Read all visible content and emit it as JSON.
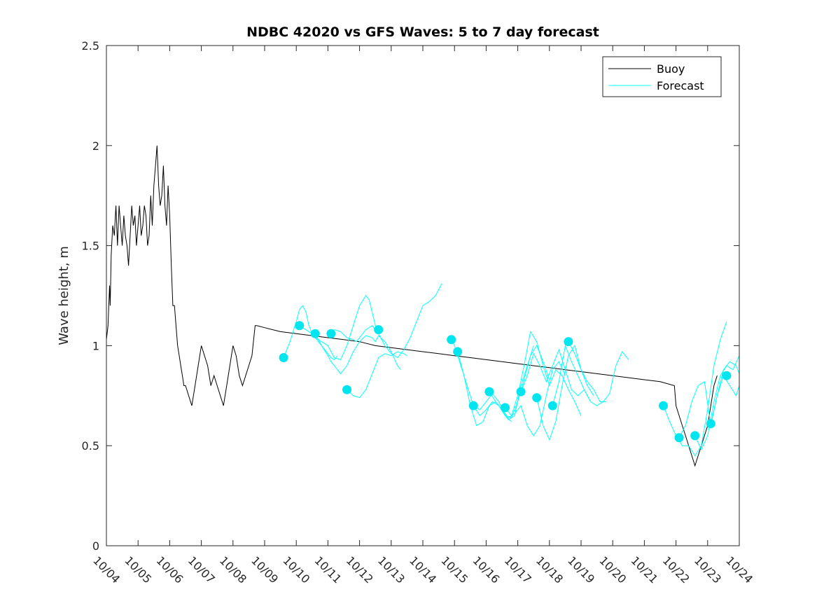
{
  "chart_data": {
    "type": "line",
    "title": "NDBC 42020 vs GFS Waves: 5 to 7 day forecast",
    "xlabel": "",
    "ylabel": "Wave height, m",
    "xlim": [
      0,
      20
    ],
    "ylim": [
      0,
      2.5
    ],
    "x_unit": "days since 10/04",
    "x_tick_values": [
      0,
      1,
      2,
      3,
      4,
      5,
      6,
      7,
      8,
      9,
      10,
      11,
      12,
      13,
      14,
      15,
      16,
      17,
      18,
      19,
      20
    ],
    "x_tick_labels": [
      "10/04",
      "10/05",
      "10/06",
      "10/07",
      "10/08",
      "10/09",
      "10/10",
      "10/11",
      "10/12",
      "10/13",
      "10/14",
      "10/15",
      "10/16",
      "10/17",
      "10/18",
      "10/19",
      "10/20",
      "10/21",
      "10/22",
      "10/23",
      "10/24"
    ],
    "y_tick_values": [
      0,
      0.5,
      1,
      1.5,
      2,
      2.5
    ],
    "y_tick_labels": [
      "0",
      "0.5",
      "1",
      "1.5",
      "2",
      "2.5"
    ],
    "legend": {
      "position": "top-right",
      "entries": [
        {
          "name": "Buoy",
          "color": "#000000"
        },
        {
          "name": "Forecast",
          "color": "#00ffff"
        }
      ]
    },
    "series": [
      {
        "name": "Buoy",
        "color": "#000000",
        "x": [
          0,
          0.05,
          0.1,
          0.12,
          0.15,
          0.2,
          0.25,
          0.3,
          0.35,
          0.4,
          0.45,
          0.5,
          0.55,
          0.6,
          0.65,
          0.7,
          0.75,
          0.8,
          0.85,
          0.9,
          0.95,
          1.0,
          1.05,
          1.1,
          1.15,
          1.2,
          1.25,
          1.3,
          1.35,
          1.4,
          1.45,
          1.5,
          1.55,
          1.6,
          1.65,
          1.7,
          1.75,
          1.8,
          1.85,
          1.9,
          1.95,
          2.0,
          2.05,
          2.1,
          2.15,
          2.2,
          2.25,
          2.3,
          2.35,
          2.4,
          2.45,
          2.5,
          2.6,
          2.7,
          2.75,
          2.8,
          2.9,
          3.0,
          3.1,
          3.2,
          3.3,
          3.4,
          3.5,
          3.6,
          3.7,
          3.8,
          3.9,
          4.0,
          4.1,
          4.2,
          4.3,
          4.4,
          4.5,
          4.6,
          4.7,
          4.75,
          5.0,
          5.5,
          6.0,
          6.5,
          7.0,
          7.5,
          8.0,
          8.5,
          9.0,
          9.5,
          10.0,
          10.5,
          11.0,
          11.5,
          12.0,
          12.5,
          13.0,
          13.5,
          14.0,
          14.5,
          15.0,
          15.5,
          16.0,
          16.5,
          17.0,
          17.5,
          17.95,
          18.0,
          18.1,
          18.2,
          18.3,
          18.4,
          18.5,
          18.6,
          18.7,
          18.8,
          18.9,
          19.0,
          19.1,
          19.2,
          19.3
        ],
        "y": [
          1.03,
          1.1,
          1.3,
          1.2,
          1.45,
          1.6,
          1.55,
          1.7,
          1.5,
          1.7,
          1.6,
          1.5,
          1.65,
          1.55,
          1.5,
          1.4,
          1.55,
          1.7,
          1.6,
          1.65,
          1.5,
          1.6,
          1.7,
          1.55,
          1.6,
          1.7,
          1.65,
          1.5,
          1.55,
          1.75,
          1.6,
          1.8,
          1.9,
          2.0,
          1.8,
          1.7,
          1.75,
          1.9,
          1.7,
          1.6,
          1.8,
          1.65,
          1.4,
          1.2,
          1.2,
          1.1,
          1.0,
          0.95,
          0.9,
          0.85,
          0.8,
          0.8,
          0.75,
          0.7,
          0.75,
          0.8,
          0.9,
          1.0,
          0.95,
          0.9,
          0.8,
          0.85,
          0.8,
          0.75,
          0.7,
          0.8,
          0.9,
          1.0,
          0.95,
          0.85,
          0.8,
          0.85,
          0.9,
          0.95,
          1.1,
          1.1,
          1.09,
          1.07,
          1.06,
          1.05,
          1.04,
          1.03,
          1.02,
          1.0,
          0.99,
          0.98,
          0.97,
          0.96,
          0.95,
          0.94,
          0.93,
          0.92,
          0.91,
          0.9,
          0.89,
          0.88,
          0.87,
          0.86,
          0.85,
          0.84,
          0.83,
          0.82,
          0.8,
          0.7,
          0.65,
          0.6,
          0.55,
          0.5,
          0.45,
          0.4,
          0.45,
          0.5,
          0.55,
          0.6,
          0.7,
          0.8,
          0.85
        ]
      },
      {
        "name": "Forecast",
        "color": "#00ffff",
        "x": [
          5.6,
          5.8,
          6.0,
          6.1,
          6.2,
          6.3,
          6.4,
          6.5,
          6.6,
          6.7,
          6.8,
          6.9,
          7.0,
          7.1,
          7.2,
          7.3
        ],
        "y": [
          0.94,
          1.02,
          1.12,
          1.18,
          1.2,
          1.17,
          1.1,
          1.06,
          1.04,
          1.02,
          1.0,
          0.98,
          0.96,
          0.94,
          0.93,
          0.95
        ]
      },
      {
        "name": "Forecast",
        "color": "#00ffff",
        "x": [
          6.1,
          6.3,
          6.5,
          6.6,
          6.8,
          7.0,
          7.1,
          7.2,
          7.4,
          7.6,
          7.8,
          8.0,
          8.2,
          8.3,
          8.5,
          8.6
        ],
        "y": [
          1.1,
          1.08,
          1.06,
          1.04,
          1.02,
          1.0,
          0.97,
          0.94,
          0.93,
          1.0,
          1.1,
          1.2,
          1.25,
          1.23,
          1.1,
          1.08
        ]
      },
      {
        "name": "Forecast",
        "color": "#00ffff",
        "x": [
          6.6,
          6.8,
          7.0,
          7.1,
          7.3,
          7.4,
          7.6,
          7.8,
          8.0,
          8.2,
          8.4,
          8.5,
          8.6,
          8.8,
          9.0,
          9.2,
          9.3
        ],
        "y": [
          1.06,
          1.0,
          0.95,
          0.92,
          0.88,
          0.86,
          0.9,
          0.97,
          1.02,
          1.05,
          1.04,
          1.02,
          1.05,
          1.02,
          0.97,
          0.9,
          0.88
        ]
      },
      {
        "name": "Forecast",
        "color": "#00ffff",
        "x": [
          7.1,
          7.2,
          7.4,
          7.6,
          7.8,
          7.9,
          8.0,
          8.2,
          8.4,
          8.6,
          8.8,
          9.0,
          9.2,
          9.4,
          9.6,
          9.8,
          10.0,
          10.2,
          10.4,
          10.6
        ],
        "y": [
          1.06,
          1.08,
          1.07,
          1.04,
          1.03,
          1.02,
          1.04,
          1.08,
          1.1,
          1.06,
          1.0,
          0.96,
          0.94,
          0.98,
          1.04,
          1.12,
          1.2,
          1.22,
          1.25,
          1.31
        ]
      },
      {
        "name": "Forecast",
        "color": "#00ffff",
        "x": [
          7.6,
          7.8,
          8.0,
          8.2,
          8.4,
          8.5,
          8.6,
          8.8,
          9.0,
          9.2,
          9.4,
          9.5
        ],
        "y": [
          0.78,
          0.75,
          0.74,
          0.78,
          0.86,
          0.9,
          0.94,
          0.96,
          0.95,
          0.97,
          0.96,
          0.95
        ]
      },
      {
        "name": "Forecast",
        "color": "#00ffff",
        "x": [
          10.9,
          11.0,
          11.2,
          11.4,
          11.6,
          11.8,
          12.0,
          12.2,
          12.4,
          12.6,
          12.8
        ],
        "y": [
          1.03,
          1.0,
          0.9,
          0.8,
          0.7,
          0.65,
          0.68,
          0.72,
          0.7,
          0.65,
          0.62
        ]
      },
      {
        "name": "Forecast",
        "color": "#00ffff",
        "x": [
          11.1,
          11.3,
          11.5,
          11.7,
          11.9,
          12.1,
          12.3,
          12.5,
          12.7,
          12.9,
          13.1,
          13.3,
          13.5
        ],
        "y": [
          0.97,
          0.85,
          0.7,
          0.6,
          0.62,
          0.7,
          0.72,
          0.68,
          0.63,
          0.65,
          0.8,
          0.9,
          1.0
        ]
      },
      {
        "name": "Forecast",
        "color": "#00ffff",
        "x": [
          11.6,
          11.8,
          12.0,
          12.2,
          12.4,
          12.6,
          12.8,
          13.0,
          13.2,
          13.4,
          13.6,
          13.8,
          14.0
        ],
        "y": [
          0.7,
          0.68,
          0.72,
          0.76,
          0.72,
          0.65,
          0.64,
          0.72,
          0.83,
          0.95,
          1.0,
          0.92,
          0.83
        ]
      },
      {
        "name": "Forecast",
        "color": "#00ffff",
        "x": [
          12.1,
          12.3,
          12.5,
          12.7,
          12.9,
          13.1,
          13.3,
          13.5,
          13.7,
          13.9,
          14.1,
          14.3,
          14.5
        ],
        "y": [
          0.77,
          0.72,
          0.68,
          0.64,
          0.66,
          0.7,
          0.6,
          0.55,
          0.6,
          0.75,
          0.88,
          0.92,
          0.85
        ]
      },
      {
        "name": "Forecast",
        "color": "#00ffff",
        "x": [
          12.6,
          12.8,
          13.0,
          13.2,
          13.4,
          13.6,
          13.8,
          14.0,
          14.2,
          14.4,
          14.6,
          14.8,
          15.0
        ],
        "y": [
          0.69,
          0.65,
          0.75,
          0.9,
          1.07,
          1.02,
          0.9,
          0.8,
          0.88,
          0.85,
          0.78,
          0.72,
          0.65
        ]
      },
      {
        "name": "Forecast",
        "color": "#00ffff",
        "x": [
          13.1,
          13.3,
          13.5,
          13.7,
          13.9,
          14.1,
          14.3,
          14.5,
          14.7,
          14.9,
          15.1,
          15.3
        ],
        "y": [
          0.77,
          0.85,
          0.96,
          0.9,
          0.82,
          0.9,
          0.98,
          0.88,
          0.78,
          0.75,
          0.78,
          0.72
        ]
      },
      {
        "name": "Forecast",
        "color": "#00ffff",
        "x": [
          13.6,
          13.8,
          14.0,
          14.2,
          14.4,
          14.6,
          14.8,
          15.0,
          15.2,
          15.4
        ],
        "y": [
          0.74,
          0.6,
          0.53,
          0.62,
          0.8,
          0.95,
          1.0,
          0.88,
          0.8,
          0.75
        ]
      },
      {
        "name": "Forecast",
        "color": "#00ffff",
        "x": [
          14.1,
          14.3,
          14.5,
          14.7,
          14.9,
          15.1,
          15.3,
          15.5,
          15.7,
          15.9,
          16.1,
          16.3,
          16.5
        ],
        "y": [
          0.7,
          0.82,
          1.0,
          0.92,
          0.85,
          0.78,
          0.72,
          0.7,
          0.72,
          0.76,
          0.9,
          0.97,
          0.93
        ]
      },
      {
        "name": "Forecast",
        "color": "#00ffff",
        "x": [
          14.6,
          14.8,
          15.0,
          15.2,
          15.4,
          15.6,
          15.8
        ],
        "y": [
          1.02,
          0.96,
          0.88,
          0.82,
          0.78,
          0.72,
          0.72
        ]
      },
      {
        "name": "Forecast",
        "color": "#00ffff",
        "x": [
          17.6,
          17.8,
          18.0,
          18.2,
          18.4,
          18.6,
          18.8,
          19.0,
          19.2,
          19.4,
          19.6
        ],
        "y": [
          0.7,
          0.62,
          0.55,
          0.5,
          0.5,
          0.45,
          0.5,
          0.68,
          0.9,
          1.03,
          1.12
        ]
      },
      {
        "name": "Forecast",
        "color": "#00ffff",
        "x": [
          18.1,
          18.3,
          18.5,
          18.7,
          18.9,
          19.1,
          19.3,
          19.5,
          19.7,
          19.9,
          20.0
        ],
        "y": [
          0.54,
          0.6,
          0.72,
          0.8,
          0.82,
          0.6,
          0.75,
          0.85,
          0.8,
          0.75,
          0.8
        ]
      },
      {
        "name": "Forecast",
        "color": "#00ffff",
        "x": [
          18.6,
          18.8,
          19.0,
          19.2,
          19.4,
          19.6,
          19.8,
          20.0
        ],
        "y": [
          0.55,
          0.48,
          0.55,
          0.72,
          0.85,
          0.9,
          0.88,
          0.95
        ]
      },
      {
        "name": "Forecast",
        "color": "#00ffff",
        "x": [
          19.1,
          19.3,
          19.5,
          19.7,
          19.9,
          20.0
        ],
        "y": [
          0.61,
          0.75,
          0.88,
          0.92,
          0.9,
          0.86
        ]
      }
    ],
    "forecast_markers": {
      "color": "#00e5ee",
      "x": [
        5.6,
        6.1,
        6.6,
        7.1,
        7.6,
        8.6,
        10.9,
        11.1,
        11.6,
        12.1,
        12.6,
        13.1,
        13.6,
        14.1,
        14.6,
        17.6,
        18.1,
        18.6,
        19.1,
        19.6
      ],
      "y": [
        0.94,
        1.1,
        1.06,
        1.06,
        0.78,
        1.08,
        1.03,
        0.97,
        0.7,
        0.77,
        0.69,
        0.77,
        0.74,
        0.7,
        1.02,
        0.7,
        0.54,
        0.55,
        0.61,
        0.85
      ]
    }
  }
}
